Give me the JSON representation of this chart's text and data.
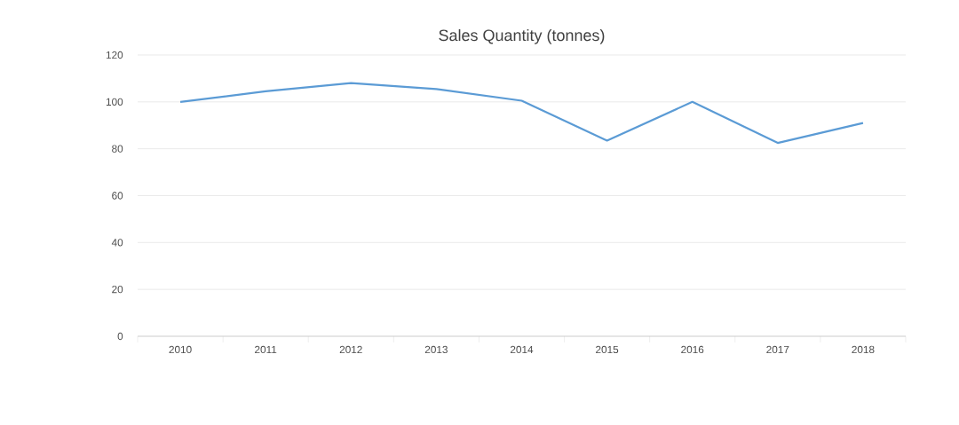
{
  "chart_data": {
    "type": "line",
    "title": "Sales Quantity (tonnes)",
    "categories": [
      "2010",
      "2011",
      "2012",
      "2013",
      "2014",
      "2015",
      "2016",
      "2017",
      "2018"
    ],
    "series": [
      {
        "color": "#5b9bd5",
        "values": [
          100,
          104.5,
          108,
          105.5,
          100.5,
          83.5,
          100,
          82.5,
          91
        ]
      }
    ],
    "ylim": [
      0,
      120
    ],
    "yticks": [
      0,
      20,
      40,
      60,
      80,
      100,
      120
    ],
    "grid": "y",
    "legend": false,
    "marker": "none",
    "line_style": "solid"
  }
}
